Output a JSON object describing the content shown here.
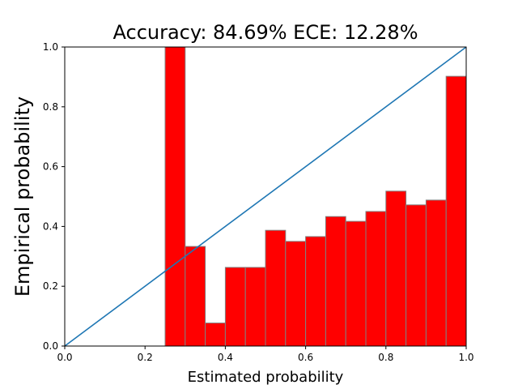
{
  "chart_data": {
    "type": "bar",
    "title": "Accuracy: 84.69% ECE: 12.28%",
    "xlabel": "Estimated probability",
    "ylabel": "Empirical probability",
    "xlim": [
      0,
      1
    ],
    "ylim": [
      0,
      1
    ],
    "xticks": [
      "0.0",
      "0.2",
      "0.4",
      "0.6",
      "0.8",
      "1.0"
    ],
    "yticks": [
      "0.0",
      "0.2",
      "0.4",
      "0.6",
      "0.8",
      "1.0"
    ],
    "bin_width": 0.05,
    "bins": [
      {
        "x": 0.25,
        "value": 1.0
      },
      {
        "x": 0.3,
        "value": 0.333
      },
      {
        "x": 0.35,
        "value": 0.077
      },
      {
        "x": 0.4,
        "value": 0.263
      },
      {
        "x": 0.45,
        "value": 0.263
      },
      {
        "x": 0.5,
        "value": 0.387
      },
      {
        "x": 0.55,
        "value": 0.35
      },
      {
        "x": 0.6,
        "value": 0.366
      },
      {
        "x": 0.65,
        "value": 0.433
      },
      {
        "x": 0.7,
        "value": 0.417
      },
      {
        "x": 0.75,
        "value": 0.45
      },
      {
        "x": 0.8,
        "value": 0.518
      },
      {
        "x": 0.85,
        "value": 0.472
      },
      {
        "x": 0.9,
        "value": 0.488
      },
      {
        "x": 0.95,
        "value": 0.902
      }
    ],
    "reference_line": {
      "x": [
        0,
        1
      ],
      "y": [
        0,
        1
      ]
    },
    "bar_color": "#ff0000",
    "bar_edge_color": "#808080",
    "line_color": "#1f77b4",
    "grid": false
  }
}
